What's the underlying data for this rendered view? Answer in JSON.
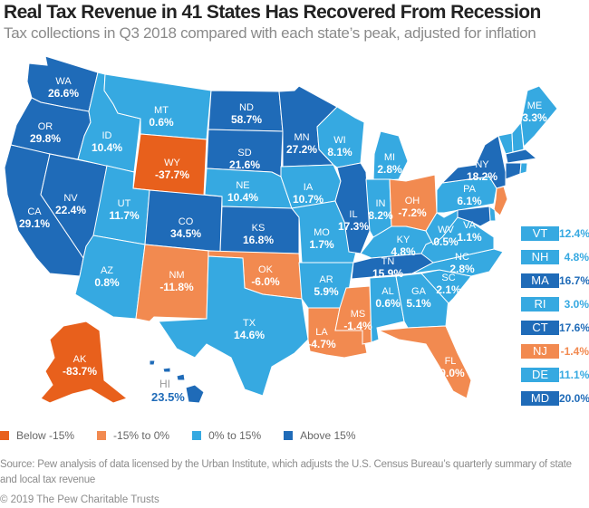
{
  "title": "Real Tax Revenue in 41 States Has Recovered From Recession",
  "subtitle": "Tax collections in Q3 2018 compared with each state’s peak, adjusted for inflation",
  "colors": {
    "below_neg15": "#e8601c",
    "neg15_to_0": "#f28a50",
    "zero_to_15": "#36a9e1",
    "above_15": "#1f6bb8"
  },
  "legend": [
    {
      "label": "Below -15%",
      "category": "below_neg15"
    },
    {
      "label": "-15% to 0%",
      "category": "neg15_to_0"
    },
    {
      "label": "0% to 15%",
      "category": "zero_to_15"
    },
    {
      "label": "Above 15%",
      "category": "above_15"
    }
  ],
  "states": {
    "WA": {
      "abbr": "WA",
      "value": "26.6%",
      "category": "above_15"
    },
    "OR": {
      "abbr": "OR",
      "value": "29.8%",
      "category": "above_15"
    },
    "CA": {
      "abbr": "CA",
      "value": "29.1%",
      "category": "above_15"
    },
    "NV": {
      "abbr": "NV",
      "value": "22.4%",
      "category": "above_15"
    },
    "ID": {
      "abbr": "ID",
      "value": "10.4%",
      "category": "zero_to_15"
    },
    "MT": {
      "abbr": "MT",
      "value": "0.6%",
      "category": "zero_to_15"
    },
    "WY": {
      "abbr": "WY",
      "value": "-37.7%",
      "category": "below_neg15"
    },
    "UT": {
      "abbr": "UT",
      "value": "11.7%",
      "category": "zero_to_15"
    },
    "AZ": {
      "abbr": "AZ",
      "value": "0.8%",
      "category": "zero_to_15"
    },
    "CO": {
      "abbr": "CO",
      "value": "34.5%",
      "category": "above_15"
    },
    "NM": {
      "abbr": "NM",
      "value": "-11.8%",
      "category": "neg15_to_0"
    },
    "ND": {
      "abbr": "ND",
      "value": "58.7%",
      "category": "above_15"
    },
    "SD": {
      "abbr": "SD",
      "value": "21.6%",
      "category": "above_15"
    },
    "NE": {
      "abbr": "NE",
      "value": "10.4%",
      "category": "zero_to_15"
    },
    "KS": {
      "abbr": "KS",
      "value": "16.8%",
      "category": "above_15"
    },
    "OK": {
      "abbr": "OK",
      "value": "-6.0%",
      "category": "neg15_to_0"
    },
    "TX": {
      "abbr": "TX",
      "value": "14.6%",
      "category": "zero_to_15"
    },
    "MN": {
      "abbr": "MN",
      "value": "27.2%",
      "category": "above_15"
    },
    "IA": {
      "abbr": "IA",
      "value": "10.7%",
      "category": "zero_to_15"
    },
    "MO": {
      "abbr": "MO",
      "value": "1.7%",
      "category": "zero_to_15"
    },
    "AR": {
      "abbr": "AR",
      "value": "5.9%",
      "category": "zero_to_15"
    },
    "LA": {
      "abbr": "LA",
      "value": "-4.7%",
      "category": "neg15_to_0"
    },
    "WI": {
      "abbr": "WI",
      "value": "8.1%",
      "category": "zero_to_15"
    },
    "IL": {
      "abbr": "IL",
      "value": "17.3%",
      "category": "above_15"
    },
    "MS": {
      "abbr": "MS",
      "value": "-1.4%",
      "category": "neg15_to_0"
    },
    "MI": {
      "abbr": "MI",
      "value": "2.8%",
      "category": "zero_to_15"
    },
    "IN": {
      "abbr": "IN",
      "value": "8.2%",
      "category": "zero_to_15"
    },
    "OH": {
      "abbr": "OH",
      "value": "-7.2%",
      "category": "neg15_to_0"
    },
    "KY": {
      "abbr": "KY",
      "value": "4.8%",
      "category": "zero_to_15"
    },
    "TN": {
      "abbr": "TN",
      "value": "15.9%",
      "category": "above_15"
    },
    "AL": {
      "abbr": "AL",
      "value": "0.6%",
      "category": "zero_to_15"
    },
    "GA": {
      "abbr": "GA",
      "value": "5.1%",
      "category": "zero_to_15"
    },
    "FL": {
      "abbr": "FL",
      "value": "-9.0%",
      "category": "neg15_to_0"
    },
    "SC": {
      "abbr": "SC",
      "value": "2.1%",
      "category": "zero_to_15"
    },
    "NC": {
      "abbr": "NC",
      "value": "2.8%",
      "category": "zero_to_15"
    },
    "VA": {
      "abbr": "VA",
      "value": "1.1%",
      "category": "zero_to_15"
    },
    "WV": {
      "abbr": "WV",
      "value": "0.5%",
      "category": "zero_to_15"
    },
    "PA": {
      "abbr": "PA",
      "value": "6.1%",
      "category": "zero_to_15"
    },
    "NY": {
      "abbr": "NY",
      "value": "18.2%",
      "category": "above_15"
    },
    "ME": {
      "abbr": "ME",
      "value": "3.3%",
      "category": "zero_to_15"
    },
    "AK": {
      "abbr": "AK",
      "value": "-83.7%",
      "category": "below_neg15"
    },
    "HI": {
      "abbr": "HI",
      "value": "23.5%",
      "category": "above_15"
    }
  },
  "small_states": [
    {
      "abbr": "VT",
      "value": "12.4%",
      "category": "zero_to_15"
    },
    {
      "abbr": "NH",
      "value": "4.8%",
      "category": "zero_to_15"
    },
    {
      "abbr": "MA",
      "value": "16.7%",
      "category": "above_15"
    },
    {
      "abbr": "RI",
      "value": "3.0%",
      "category": "zero_to_15"
    },
    {
      "abbr": "CT",
      "value": "17.6%",
      "category": "above_15"
    },
    {
      "abbr": "NJ",
      "value": "-1.4%",
      "category": "neg15_to_0"
    },
    {
      "abbr": "DE",
      "value": "11.1%",
      "category": "zero_to_15"
    },
    {
      "abbr": "MD",
      "value": "20.0%",
      "category": "above_15"
    }
  ],
  "source": "Source: Pew analysis of data licensed by the Urban Institute, which adjusts the U.S. Census Bureau’s quarterly summary of state and local tax revenue",
  "copyright": "© 2019 The Pew Charitable Trusts"
}
